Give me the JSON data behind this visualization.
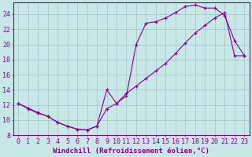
{
  "xlabel": "Windchill (Refroidissement éolien,°C)",
  "bg_color": "#c8e8e8",
  "line_color": "#880088",
  "marker": "+",
  "xlim": [
    -0.5,
    23.5
  ],
  "ylim": [
    8,
    25.5
  ],
  "xticks": [
    0,
    1,
    2,
    3,
    4,
    5,
    6,
    7,
    8,
    9,
    10,
    11,
    12,
    13,
    14,
    15,
    16,
    17,
    18,
    19,
    20,
    21,
    22,
    23
  ],
  "yticks": [
    8,
    10,
    12,
    14,
    16,
    18,
    20,
    22,
    24
  ],
  "curve1_x": [
    0,
    1,
    2,
    3,
    4,
    5,
    6,
    7,
    8,
    9,
    10,
    11,
    12,
    13,
    14,
    15,
    16,
    17,
    18,
    19,
    20,
    21,
    22,
    23
  ],
  "curve1_y": [
    12.2,
    11.6,
    11.0,
    10.5,
    9.7,
    9.2,
    8.8,
    8.7,
    9.2,
    14.0,
    12.2,
    13.2,
    20.0,
    22.8,
    23.0,
    23.5,
    24.2,
    25.0,
    25.2,
    24.8,
    24.8,
    23.8,
    20.5,
    18.5
  ],
  "curve2_x": [
    0,
    1,
    2,
    3,
    4,
    5,
    6,
    7,
    8,
    9,
    10,
    11,
    12,
    13,
    14,
    15,
    16,
    17,
    18,
    19,
    20,
    21,
    22,
    23
  ],
  "curve2_y": [
    12.2,
    11.5,
    10.9,
    10.5,
    9.7,
    9.2,
    8.8,
    8.7,
    9.2,
    11.5,
    12.2,
    13.5,
    14.5,
    15.5,
    16.5,
    17.5,
    18.8,
    20.2,
    21.5,
    22.5,
    23.5,
    24.2,
    18.5,
    18.5
  ],
  "grid_color": "#7799aa",
  "font_color": "#880088",
  "xlabel_fontsize": 6.5,
  "tick_fontsize": 6
}
